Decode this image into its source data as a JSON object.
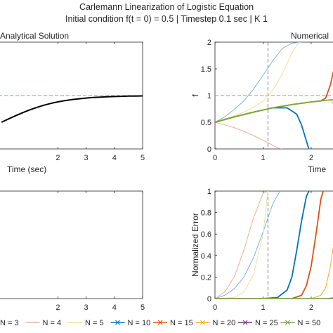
{
  "figure": {
    "title": "Carlemann Linearization of Logistic Equation",
    "subtitle": "Initial condition f(t = 0) = 0.5 | Timestep 0.1 sec | K 1"
  },
  "colors": {
    "analytical": "#000000",
    "reference_line": "#ff6f6f",
    "marker_line": "#606060",
    "axis": "#262626"
  },
  "chart_data": [
    {
      "type": "line",
      "panel": "top-left",
      "title": "Analytical Solution",
      "xlabel": "Time (sec)",
      "ylabel": "",
      "xlim": [
        -0.3,
        5
      ],
      "ylim": [
        0,
        2
      ],
      "xticks": [
        2,
        3,
        4,
        5
      ],
      "yticks": [],
      "reference_lines": [
        {
          "orientation": "horizontal",
          "y": 1
        }
      ],
      "series": [
        {
          "values_x": [
            0,
            0.25,
            0.5,
            0.75,
            1,
            1.25,
            1.5,
            1.75,
            2,
            2.25,
            2.5,
            2.75,
            3,
            3.25,
            3.5,
            3.75,
            4,
            4.25,
            4.5,
            4.75,
            5
          ],
          "values_y": [
            0.5,
            0.562,
            0.622,
            0.679,
            0.731,
            0.777,
            0.818,
            0.852,
            0.881,
            0.905,
            0.924,
            0.94,
            0.953,
            0.963,
            0.971,
            0.977,
            0.982,
            0.986,
            0.989,
            0.991,
            0.993
          ]
        }
      ]
    },
    {
      "type": "line",
      "panel": "top-right",
      "title": "Numerical",
      "xlabel": "Time",
      "ylabel": "f",
      "xlim": [
        0,
        2.6
      ],
      "ylim": [
        0,
        2
      ],
      "xticks": [
        0,
        1,
        2
      ],
      "yticks": [
        0,
        0.5,
        1,
        1.5,
        2
      ],
      "reference_lines": [
        {
          "orientation": "horizontal",
          "y": 1
        },
        {
          "orientation": "vertical",
          "x": 1.1
        }
      ],
      "series": [
        {
          "name": "N = 3",
          "color": "#7fb2e6",
          "x": [
            0,
            0.2,
            0.4,
            0.6,
            0.8,
            1.0,
            1.2,
            1.4,
            1.6,
            1.8
          ],
          "y": [
            0.5,
            0.6,
            0.74,
            0.9,
            1.12,
            1.38,
            1.65,
            1.88,
            1.98,
            2.0
          ]
        },
        {
          "name": "N = 4",
          "color": "#f0b090",
          "x": [
            0,
            0.2,
            0.4,
            0.6,
            0.8,
            1.0,
            1.2,
            1.3,
            1.4
          ],
          "y": [
            0.5,
            0.45,
            0.4,
            0.33,
            0.25,
            0.16,
            0.07,
            0.02,
            0.0
          ]
        },
        {
          "name": "N = 5",
          "color": "#ede39a",
          "x": [
            0,
            0.2,
            0.4,
            0.6,
            0.8,
            1.0,
            1.2,
            1.4,
            1.6,
            1.75
          ],
          "y": [
            0.5,
            0.56,
            0.62,
            0.69,
            0.78,
            0.9,
            1.1,
            1.4,
            1.8,
            2.0
          ]
        },
        {
          "name": "N = 10",
          "color": "#0072bd",
          "x": [
            0,
            0.4,
            0.8,
            1.2,
            1.5,
            1.7,
            1.8,
            1.9,
            1.95
          ],
          "y": [
            0.5,
            0.6,
            0.69,
            0.77,
            0.77,
            0.65,
            0.45,
            0.15,
            0.0
          ]
        },
        {
          "name": "N = 15",
          "color": "#d95319",
          "x": [
            0,
            0.4,
            0.8,
            1.2,
            1.6,
            2.0,
            2.2,
            2.3,
            2.4,
            2.5
          ],
          "y": [
            0.5,
            0.6,
            0.69,
            0.77,
            0.83,
            0.88,
            0.9,
            0.95,
            1.2,
            1.6
          ]
        },
        {
          "name": "N = 20",
          "color": "#edb120",
          "x": [
            0,
            0.4,
            0.8,
            1.2,
            1.6,
            2.0,
            2.4,
            2.6
          ],
          "y": [
            0.5,
            0.6,
            0.69,
            0.77,
            0.83,
            0.88,
            0.92,
            0.7
          ]
        },
        {
          "name": "N = 25",
          "color": "#7e2f8e",
          "x": [
            0,
            0.4,
            0.8,
            1.2,
            1.6,
            2.0,
            2.4,
            2.6
          ],
          "y": [
            0.5,
            0.6,
            0.69,
            0.77,
            0.83,
            0.88,
            0.92,
            0.93
          ]
        },
        {
          "name": "N = 50",
          "color": "#77ac30",
          "x": [
            0,
            0.4,
            0.8,
            1.2,
            1.6,
            2.0,
            2.4,
            2.6
          ],
          "y": [
            0.5,
            0.6,
            0.69,
            0.77,
            0.83,
            0.88,
            0.92,
            0.93
          ]
        }
      ]
    },
    {
      "type": "line",
      "panel": "bottom-left",
      "title": "",
      "xlabel": "",
      "ylabel": "",
      "xlim": [
        -0.3,
        5
      ],
      "ylim": [
        0,
        1
      ],
      "xticks": [
        2,
        3,
        4,
        5
      ],
      "yticks": [],
      "series": []
    },
    {
      "type": "line",
      "panel": "bottom-right",
      "title": "",
      "xlabel": "",
      "ylabel": "Normalized Error",
      "xlim": [
        0,
        2.6
      ],
      "ylim": [
        0,
        1
      ],
      "xticks": [
        0,
        1,
        2
      ],
      "yticks": [
        0,
        0.2,
        0.4,
        0.6,
        0.8,
        1
      ],
      "reference_lines": [
        {
          "orientation": "vertical",
          "x": 1.1
        }
      ],
      "series": [
        {
          "name": "N = 3",
          "color": "#7fb2e6",
          "x": [
            0,
            0.2,
            0.4,
            0.6,
            0.8,
            1.0,
            1.2,
            1.35
          ],
          "y": [
            0,
            0.03,
            0.09,
            0.2,
            0.38,
            0.62,
            0.88,
            1.0
          ]
        },
        {
          "name": "N = 4",
          "color": "#f0b090",
          "x": [
            0,
            0.2,
            0.4,
            0.6,
            0.8,
            1.0,
            1.1
          ],
          "y": [
            0,
            0.06,
            0.2,
            0.45,
            0.75,
            0.98,
            1.0
          ]
        },
        {
          "name": "N = 5",
          "color": "#ede39a",
          "x": [
            0,
            0.4,
            0.6,
            0.8,
            1.0,
            1.1
          ],
          "y": [
            0,
            0.01,
            0.06,
            0.22,
            0.6,
            1.0
          ]
        },
        {
          "name": "N = 10",
          "color": "#0072bd",
          "x": [
            0,
            1.0,
            1.3,
            1.5,
            1.6,
            1.7,
            1.8,
            1.9,
            1.95
          ],
          "y": [
            0,
            0.0,
            0.01,
            0.08,
            0.2,
            0.45,
            0.72,
            0.95,
            1.0
          ]
        },
        {
          "name": "N = 15",
          "color": "#d95319",
          "x": [
            0,
            1.6,
            1.8,
            1.9,
            2.0,
            2.1,
            2.2,
            2.25
          ],
          "y": [
            0,
            0.0,
            0.03,
            0.12,
            0.3,
            0.6,
            0.92,
            1.0
          ]
        },
        {
          "name": "N = 20",
          "color": "#edb120",
          "x": [
            0,
            2.0,
            2.2,
            2.3,
            2.4,
            2.5,
            2.6
          ],
          "y": [
            0,
            0.0,
            0.03,
            0.1,
            0.3,
            0.6,
            0.95
          ]
        },
        {
          "name": "N = 25",
          "color": "#7e2f8e",
          "x": [
            0,
            2.3,
            2.5,
            2.6
          ],
          "y": [
            0,
            0.0,
            0.01,
            0.05
          ]
        },
        {
          "name": "N = 50",
          "color": "#77ac30",
          "x": [
            0,
            2.4,
            2.6
          ],
          "y": [
            0,
            0.0,
            0.01
          ]
        }
      ]
    }
  ],
  "legend": {
    "placement": "bottom",
    "entries": [
      {
        "label": "N = 3",
        "color": "#7fb2e6",
        "marker": "none"
      },
      {
        "label": "N = 4",
        "color": "#f0b090",
        "marker": "none"
      },
      {
        "label": "N = 5",
        "color": "#ede39a",
        "marker": "none"
      },
      {
        "label": "N = 10",
        "color": "#0072bd",
        "marker": "x"
      },
      {
        "label": "N = 15",
        "color": "#d95319",
        "marker": "x"
      },
      {
        "label": "N = 20",
        "color": "#edb120",
        "marker": "x"
      },
      {
        "label": "N = 25",
        "color": "#7e2f8e",
        "marker": "x"
      },
      {
        "label": "N = 50",
        "color": "#77ac30",
        "marker": "x"
      }
    ]
  }
}
